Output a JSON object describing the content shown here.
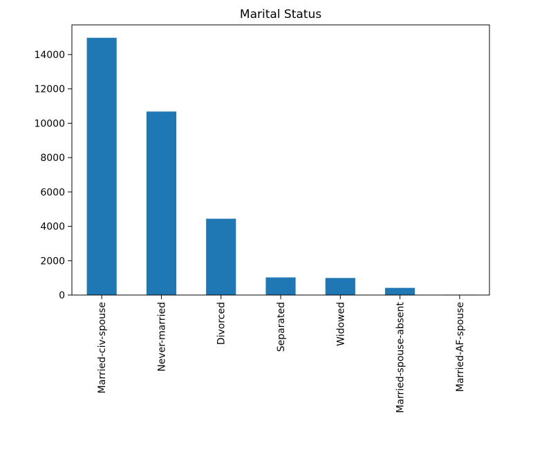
{
  "chart_data": {
    "type": "bar",
    "title": "Marital Status",
    "xlabel": "",
    "ylabel": "",
    "categories": [
      "Married-civ-spouse",
      "Never-married",
      "Divorced",
      "Separated",
      "Widowed",
      "Married-spouse-absent",
      "Married-AF-spouse"
    ],
    "values": [
      14976,
      10683,
      4443,
      1025,
      993,
      418,
      23
    ],
    "ylim": [
      0,
      15727
    ],
    "yticks": [
      0,
      2000,
      4000,
      6000,
      8000,
      10000,
      12000,
      14000
    ],
    "grid": false,
    "legend": "none",
    "colors": {
      "bar": "#1f77b4",
      "axis": "#000000",
      "background": "#ffffff"
    }
  }
}
